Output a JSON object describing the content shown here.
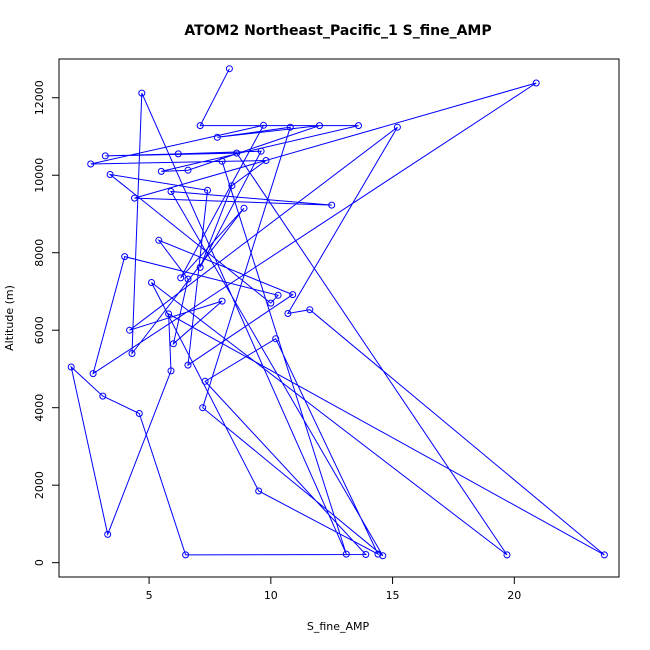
{
  "chart_data": {
    "type": "line",
    "title": "ATOM2 Northeast_Pacific_1 S_fine_AMP",
    "xlabel": "S_fine_AMP",
    "ylabel": "Altitude (m)",
    "xlim": [
      1.3,
      24.3
    ],
    "ylim": [
      -370,
      13000
    ],
    "xticks": [
      5,
      10,
      15,
      20
    ],
    "yticks": [
      0,
      2000,
      4000,
      6000,
      8000,
      10000,
      12000
    ],
    "grid": false,
    "series_color": "#0000ff",
    "x": [
      8.3,
      7.1,
      13.6,
      5.5,
      6.6,
      12.0,
      7.8,
      10.8,
      7.2,
      14.6,
      5.9,
      12.5,
      4.4,
      20.9,
      2.7,
      4.0,
      10.3,
      10.0,
      3.4,
      7.4,
      6.6,
      10.9,
      5.4,
      6.6,
      6.0,
      8.0,
      4.2,
      15.2,
      10.7,
      11.6,
      23.7,
      5.8,
      5.9,
      3.3,
      1.8,
      3.1,
      4.6,
      6.5,
      13.9,
      7.3,
      10.2,
      14.4,
      9.5,
      5.1,
      19.7,
      8.6,
      3.2,
      6.2,
      9.6,
      7.1,
      8.4,
      9.8,
      2.6,
      9.7,
      6.3,
      8.9,
      4.3,
      4.7,
      13.1,
      8.0
    ],
    "y": [
      12750,
      11280,
      11280,
      10100,
      10130,
      11280,
      10980,
      11240,
      4000,
      180,
      9580,
      9230,
      9410,
      12380,
      4880,
      7900,
      6900,
      6700,
      10020,
      9610,
      5100,
      6920,
      8320,
      7320,
      5650,
      6750,
      6000,
      11240,
      6430,
      6530,
      200,
      6420,
      4950,
      730,
      5050,
      4300,
      3850,
      200,
      210,
      4680,
      5780,
      220,
      1850,
      7230,
      200,
      10570,
      10500,
      10550,
      10620,
      7620,
      9730,
      10380,
      10290,
      11290,
      7350,
      9150,
      5400,
      12120,
      220,
      10360
    ]
  }
}
